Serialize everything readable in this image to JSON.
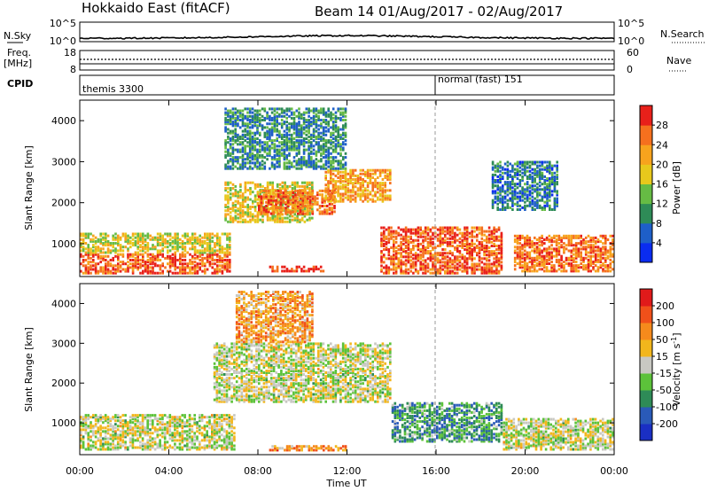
{
  "header": {
    "station": "Hokkaido East (fitACF)",
    "beam_date": "Beam 14 01/Aug/2017 - 02/Aug/2017"
  },
  "strip_labels": {
    "nsky": "N.Sky",
    "freq_line1": "Freq.",
    "freq_line2": "[MHz]",
    "cpid": "CPID",
    "nsearch": "N.Search",
    "nave": "Nave",
    "nsky_ticks": [
      "10^5",
      "10^0"
    ],
    "freq_ticks": [
      "18",
      "8"
    ],
    "nsearch_ticks": [
      "10^5",
      "10^0"
    ],
    "nave_ticks": [
      "60",
      "0"
    ]
  },
  "cpid_segments": [
    {
      "label": "themis 3300",
      "start_hour": 0
    },
    {
      "label": "normal (fast) 151",
      "start_hour": 16
    }
  ],
  "chart_data": [
    {
      "type": "heatmap",
      "name": "power",
      "ylabel": "Slant Range [km]",
      "yticks": [
        1000,
        2000,
        3000,
        4000
      ],
      "ylim": [
        200,
        4500
      ],
      "xlim": [
        0,
        24
      ],
      "colorbar": {
        "label": "Power [dB]",
        "ticks": [
          "4",
          "8",
          "12",
          "16",
          "20",
          "24",
          "28"
        ],
        "colors": [
          "#0a2cf0",
          "#1e5fc8",
          "#2e8b57",
          "#66bb44",
          "#e8c81c",
          "#f7a31d",
          "#f5701e",
          "#e8201a"
        ]
      },
      "regions": [
        {
          "t0": 0,
          "t1": 6.8,
          "r0": 250,
          "r1": 750,
          "level": 0.85
        },
        {
          "t0": 0,
          "t1": 6.8,
          "r0": 750,
          "r1": 1250,
          "level": 0.55
        },
        {
          "t0": 6.5,
          "t1": 10.5,
          "r0": 1500,
          "r1": 2500,
          "level": 0.55
        },
        {
          "t0": 8,
          "t1": 11.5,
          "r0": 1700,
          "r1": 2300,
          "level": 0.8
        },
        {
          "t0": 11,
          "t1": 14,
          "r0": 2000,
          "r1": 2800,
          "level": 0.7
        },
        {
          "t0": 6.5,
          "t1": 12,
          "r0": 2800,
          "r1": 4300,
          "level": 0.3
        },
        {
          "t0": 13.5,
          "t1": 19,
          "r0": 250,
          "r1": 1400,
          "level": 0.85
        },
        {
          "t0": 8.5,
          "t1": 11,
          "r0": 300,
          "r1": 450,
          "level": 0.95
        },
        {
          "t0": 19.5,
          "t1": 24,
          "r0": 300,
          "r1": 1200,
          "level": 0.8
        },
        {
          "t0": 18.5,
          "t1": 21.5,
          "r0": 1800,
          "r1": 3000,
          "level": 0.25
        }
      ]
    },
    {
      "type": "heatmap",
      "name": "velocity",
      "ylabel": "Slant Range [km]",
      "yticks": [
        1000,
        2000,
        3000,
        4000
      ],
      "ylim": [
        200,
        4500
      ],
      "xlim": [
        0,
        24
      ],
      "xlabel": "Time UT",
      "xticks": [
        "00:00",
        "04:00",
        "08:00",
        "12:00",
        "16:00",
        "20:00",
        "00:00"
      ],
      "colorbar": {
        "label": "Velocity [m s^-1]",
        "ticks": [
          "200",
          "100",
          "50",
          "15",
          "-15",
          "-50",
          "-100",
          "-200"
        ],
        "colors": [
          "#1a2fc4",
          "#2a5ab8",
          "#2e8b57",
          "#5cc23a",
          "#c8c8c2",
          "#f2b61c",
          "#f58a1c",
          "#f0501a",
          "#e01a1a"
        ]
      },
      "regions": [
        {
          "t0": 0,
          "t1": 7,
          "r0": 300,
          "r1": 1200,
          "level": 0.5
        },
        {
          "t0": 6,
          "t1": 14,
          "r0": 1500,
          "r1": 3000,
          "level": 0.5
        },
        {
          "t0": 14,
          "t1": 19,
          "r0": 500,
          "r1": 1500,
          "level": 0.3
        },
        {
          "t0": 8.5,
          "t1": 12,
          "r0": 280,
          "r1": 420,
          "level": 0.72
        },
        {
          "t0": 19,
          "t1": 24,
          "r0": 300,
          "r1": 1100,
          "level": 0.5
        },
        {
          "t0": 7,
          "t1": 10.5,
          "r0": 3000,
          "r1": 4300,
          "level": 0.68
        }
      ]
    }
  ]
}
